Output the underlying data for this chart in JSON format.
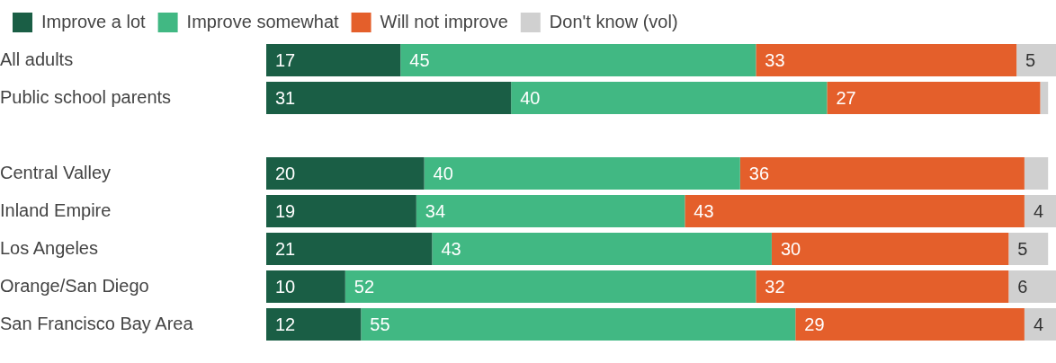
{
  "chart_data": {
    "type": "bar",
    "orientation": "horizontal",
    "stacked": true,
    "legend": "top left",
    "categories": [
      "All adults",
      "Public school parents",
      null,
      "Central Valley",
      "Inland Empire",
      "Los Angeles",
      "Orange/San Diego",
      "San Francisco Bay Area"
    ],
    "series": [
      {
        "name": "Improve a lot",
        "color": "#1a5e45",
        "values": [
          17,
          31,
          null,
          20,
          19,
          21,
          10,
          12
        ],
        "value_labels": [
          "17",
          "31",
          null,
          "20",
          "19",
          "21",
          "10",
          "12"
        ]
      },
      {
        "name": "Improve somewhat",
        "color": "#41b883",
        "values": [
          45,
          40,
          null,
          40,
          34,
          43,
          52,
          55
        ],
        "value_labels": [
          "45",
          "40",
          null,
          "40",
          "34",
          "43",
          "52",
          "55"
        ]
      },
      {
        "name": "Will not improve",
        "color": "#e45f2b",
        "values": [
          33,
          27,
          null,
          36,
          43,
          30,
          32,
          29
        ],
        "value_labels": [
          "33",
          "27",
          null,
          "36",
          "43",
          "30",
          "32",
          "29"
        ]
      },
      {
        "name": "Don't know (vol)",
        "color": "#d0d0d0",
        "values": [
          5,
          1,
          null,
          3,
          4,
          5,
          6,
          4
        ],
        "value_labels": [
          "5",
          null,
          null,
          null,
          "4",
          "5",
          "6",
          "4"
        ]
      }
    ]
  }
}
